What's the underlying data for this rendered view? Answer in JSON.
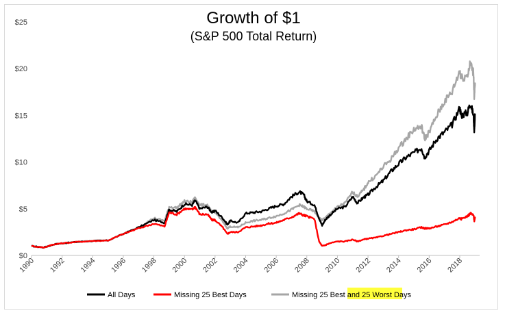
{
  "chart_data": {
    "type": "line",
    "title": "Growth of $1",
    "subtitle": "(S&P 500 Total Return)",
    "xlabel": "",
    "ylabel": "",
    "xlim": [
      1990,
      2019.3
    ],
    "ylim": [
      0,
      25
    ],
    "y_ticks": [
      0,
      5,
      10,
      15,
      20,
      25
    ],
    "y_tick_labels": [
      "$0",
      "$5",
      "$10",
      "$15",
      "$20",
      "$25"
    ],
    "x_ticks": [
      1990,
      1992,
      1994,
      1996,
      1998,
      2000,
      2002,
      2004,
      2006,
      2008,
      2010,
      2012,
      2014,
      2016,
      2018
    ],
    "x_tick_labels": [
      "1990",
      "1992",
      "1994",
      "1996",
      "1998",
      "2000",
      "2002",
      "2004",
      "2006",
      "2008",
      "2010",
      "2012",
      "2014",
      "2016",
      "2018"
    ],
    "grid": false,
    "legend_position": "bottom",
    "highlight_color": "#ffff3c",
    "series": [
      {
        "name": "All Days",
        "color": "#000000",
        "x": [
          1990,
          1990.8,
          1991.5,
          1992,
          1993,
          1994,
          1995,
          1996,
          1997,
          1998,
          1998.7,
          1999,
          1999.5,
          2000,
          2000.5,
          2000.7,
          2001,
          2001.5,
          2001.8,
          2002,
          2002.5,
          2002.8,
          2003,
          2003.5,
          2004,
          2004.5,
          2005,
          2005.5,
          2006,
          2006.5,
          2007,
          2007.5,
          2007.8,
          2008,
          2008.5,
          2008.8,
          2009,
          2009.2,
          2009.5,
          2010,
          2010.5,
          2011,
          2011.3,
          2011.7,
          2012,
          2012.5,
          2013,
          2013.5,
          2014,
          2014.5,
          2015,
          2015.5,
          2015.7,
          2016,
          2016.5,
          2017,
          2017.5,
          2018,
          2018.1,
          2018.5,
          2018.7,
          2018.9,
          2018.95,
          2019
        ],
        "y": [
          1.0,
          0.85,
          1.2,
          1.3,
          1.45,
          1.55,
          1.6,
          2.3,
          3.0,
          3.8,
          3.5,
          4.9,
          4.7,
          5.5,
          5.4,
          5.9,
          5.0,
          5.2,
          4.6,
          4.8,
          4.0,
          3.3,
          3.7,
          3.5,
          4.5,
          4.6,
          4.7,
          5.0,
          5.3,
          5.5,
          6.3,
          6.8,
          6.5,
          5.8,
          5.4,
          4.0,
          3.2,
          3.8,
          4.3,
          5.0,
          5.2,
          6.3,
          5.6,
          6.2,
          6.5,
          7.3,
          8.0,
          9.0,
          9.8,
          10.5,
          11.0,
          11.5,
          10.5,
          11.2,
          12.5,
          13.2,
          14.0,
          15.8,
          15.0,
          15.3,
          16.3,
          15.0,
          13.3,
          15.2
        ]
      },
      {
        "name": "Missing 25 Best Days",
        "color": "#ff0000",
        "x": [
          1990,
          1990.8,
          1991.5,
          1992,
          1993,
          1994,
          1995,
          1996,
          1997,
          1998,
          1998.7,
          1999,
          1999.5,
          2000,
          2000.5,
          2000.7,
          2001,
          2001.5,
          2001.8,
          2002,
          2002.5,
          2002.8,
          2003,
          2003.5,
          2004,
          2004.5,
          2005,
          2005.5,
          2006,
          2006.5,
          2007,
          2007.5,
          2007.8,
          2008,
          2008.5,
          2008.8,
          2009,
          2009.2,
          2009.5,
          2010,
          2010.5,
          2011,
          2011.3,
          2011.7,
          2012,
          2012.5,
          2013,
          2013.5,
          2014,
          2014.5,
          2015,
          2015.5,
          2015.7,
          2016,
          2016.5,
          2017,
          2017.5,
          2018,
          2018.1,
          2018.5,
          2018.7,
          2018.9,
          2018.95,
          2019
        ],
        "y": [
          1.0,
          0.85,
          1.2,
          1.3,
          1.45,
          1.55,
          1.6,
          2.3,
          2.9,
          3.4,
          3.1,
          4.6,
          4.4,
          5.0,
          4.9,
          5.2,
          4.4,
          4.4,
          3.8,
          3.8,
          3.0,
          2.3,
          2.5,
          2.5,
          3.0,
          3.1,
          3.2,
          3.4,
          3.5,
          3.8,
          4.1,
          4.5,
          4.3,
          4.2,
          3.9,
          1.5,
          1.0,
          1.1,
          1.3,
          1.5,
          1.5,
          1.7,
          1.5,
          1.7,
          1.8,
          1.9,
          2.1,
          2.3,
          2.5,
          2.7,
          2.8,
          3.0,
          2.9,
          2.9,
          3.1,
          3.3,
          3.6,
          4.0,
          3.9,
          4.2,
          4.5,
          4.3,
          3.7,
          4.0
        ]
      },
      {
        "name": "Missing 25 Best and 25 Worst Days",
        "color": "#a6a6a6",
        "x": [
          1990,
          1990.8,
          1991.5,
          1992,
          1993,
          1994,
          1995,
          1996,
          1997,
          1998,
          1998.7,
          1999,
          1999.5,
          2000,
          2000.5,
          2000.7,
          2001,
          2001.5,
          2001.8,
          2002,
          2002.5,
          2002.8,
          2003,
          2003.5,
          2004,
          2004.5,
          2005,
          2005.5,
          2006,
          2006.5,
          2007,
          2007.5,
          2007.8,
          2008,
          2008.5,
          2008.8,
          2009,
          2009.2,
          2009.5,
          2010,
          2010.5,
          2011,
          2011.3,
          2011.7,
          2012,
          2012.5,
          2013,
          2013.5,
          2014,
          2014.5,
          2015,
          2015.5,
          2015.7,
          2016,
          2016.5,
          2017,
          2017.5,
          2018,
          2018.1,
          2018.5,
          2018.7,
          2018.9,
          2018.95,
          2019
        ],
        "y": [
          1.0,
          0.85,
          1.2,
          1.3,
          1.45,
          1.55,
          1.6,
          2.3,
          3.0,
          4.0,
          3.7,
          5.2,
          5.1,
          5.8,
          5.7,
          6.2,
          5.4,
          5.4,
          4.6,
          4.7,
          3.6,
          2.9,
          3.1,
          3.0,
          3.5,
          3.7,
          3.8,
          4.0,
          4.2,
          4.5,
          4.9,
          5.4,
          5.2,
          5.0,
          4.7,
          4.0,
          3.8,
          4.0,
          4.5,
          5.2,
          5.6,
          6.8,
          6.3,
          7.0,
          7.8,
          8.5,
          9.5,
          10.3,
          11.5,
          12.5,
          13.5,
          13.8,
          12.5,
          13.2,
          15.0,
          16.5,
          17.5,
          19.8,
          19.0,
          19.3,
          20.6,
          19.5,
          16.8,
          18.5
        ]
      }
    ]
  }
}
